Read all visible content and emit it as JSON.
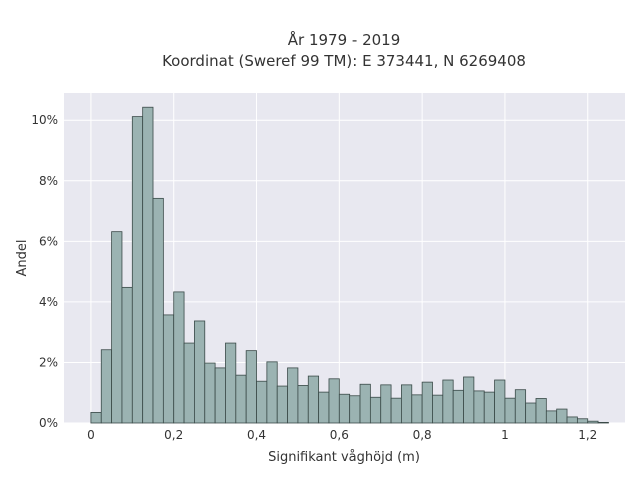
{
  "chart_data": {
    "type": "bar",
    "title_line1": "År 1979 - 2019",
    "title_line2": "Koordinat (Sweref 99 TM): E 373441, N 6269408",
    "xlabel": "Signifikant våghöjd (m)",
    "ylabel": "Andel",
    "bin_width": 0.025,
    "bin_start": 0.0,
    "xlim": [
      -0.065,
      1.29
    ],
    "ylim": [
      0,
      0.109
    ],
    "x_ticks": [
      0,
      0.2,
      0.4,
      0.6,
      0.8,
      1,
      1.2
    ],
    "x_tick_labels": [
      "0",
      "0,2",
      "0,4",
      "0,6",
      "0,8",
      "1",
      "1,2"
    ],
    "y_ticks": [
      0,
      0.02,
      0.04,
      0.06,
      0.08,
      0.1
    ],
    "y_tick_labels": [
      "0%",
      "2%",
      "4%",
      "6%",
      "8%",
      "10%"
    ],
    "values": [
      0.0035,
      0.0242,
      0.0632,
      0.0448,
      0.1012,
      0.1043,
      0.0742,
      0.0357,
      0.0433,
      0.0264,
      0.0337,
      0.0198,
      0.0182,
      0.0264,
      0.0158,
      0.0239,
      0.0138,
      0.0202,
      0.0122,
      0.0182,
      0.0124,
      0.0155,
      0.0102,
      0.0146,
      0.0095,
      0.009,
      0.0128,
      0.0085,
      0.0126,
      0.0082,
      0.0126,
      0.0093,
      0.0135,
      0.0092,
      0.0142,
      0.0108,
      0.0152,
      0.0106,
      0.0102,
      0.0142,
      0.0082,
      0.011,
      0.0066,
      0.0081,
      0.004,
      0.0046,
      0.002,
      0.0014,
      0.0006,
      0.0002
    ],
    "grid": true,
    "legend": "none",
    "colors": {
      "plot_bg": "#e8e8f0",
      "grid": "#ffffff",
      "bar_fill": "#9bb3b2",
      "bar_edge": "#3a4a48",
      "text": "#333333"
    }
  }
}
